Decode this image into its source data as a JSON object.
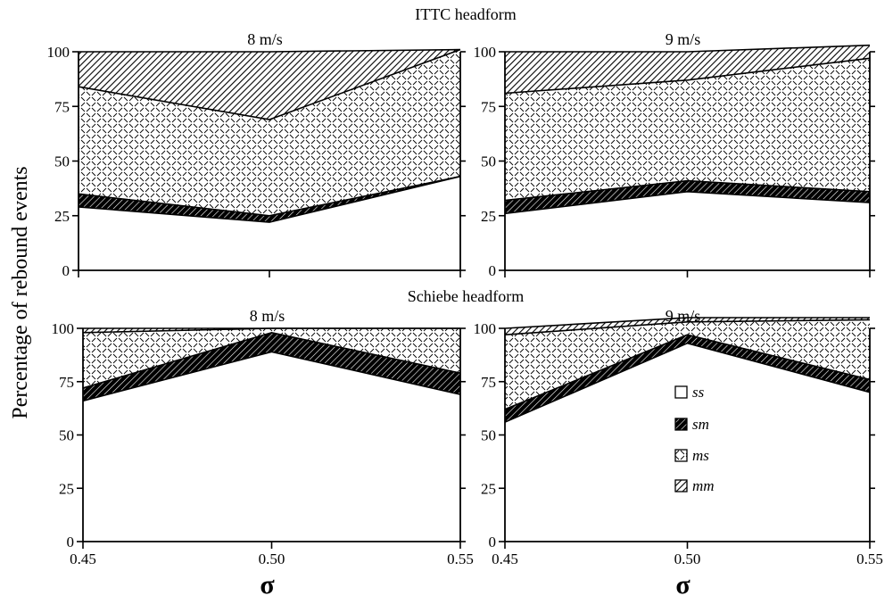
{
  "figure": {
    "ylabel": "Percentage of rebound events",
    "legend": [
      {
        "key": "ss",
        "pattern": "white"
      },
      {
        "key": "sm",
        "pattern": "dense-diagonal"
      },
      {
        "key": "ms",
        "pattern": "dashed-crosshatch"
      },
      {
        "key": "mm",
        "pattern": "diagonal-hatch"
      }
    ],
    "sections": [
      {
        "title": "ITTC headform"
      },
      {
        "title": "Schiebe headform"
      }
    ]
  },
  "chart_data": [
    {
      "type": "area",
      "stacked": true,
      "section": "ITTC headform",
      "title": "8 m/s",
      "xlabel": "",
      "x": [
        0.45,
        0.5,
        0.55
      ],
      "x_ticks": [
        "0.45",
        "0.50",
        "0.55"
      ],
      "ylim": [
        0,
        100
      ],
      "y_ticks": [
        "0",
        "25",
        "50",
        "75",
        "100"
      ],
      "series": [
        {
          "name": "ss",
          "values": [
            29,
            22,
            43
          ]
        },
        {
          "name": "sm",
          "values": [
            6,
            3,
            0
          ]
        },
        {
          "name": "ms",
          "values": [
            49,
            44,
            58
          ]
        },
        {
          "name": "mm",
          "values": [
            16,
            31,
            0
          ]
        }
      ]
    },
    {
      "type": "area",
      "stacked": true,
      "section": "ITTC headform",
      "title": "9 m/s",
      "xlabel": "",
      "x": [
        0.45,
        0.5,
        0.55
      ],
      "x_ticks": [
        "0.45",
        "0.50",
        "0.55"
      ],
      "ylim": [
        0,
        100
      ],
      "y_ticks": [
        "0",
        "25",
        "50",
        "75",
        "100"
      ],
      "series": [
        {
          "name": "ss",
          "values": [
            26,
            36,
            31
          ]
        },
        {
          "name": "sm",
          "values": [
            6,
            5,
            5
          ]
        },
        {
          "name": "ms",
          "values": [
            49,
            46,
            61
          ]
        },
        {
          "name": "mm",
          "values": [
            19,
            13,
            6
          ]
        }
      ]
    },
    {
      "type": "area",
      "stacked": true,
      "section": "Schiebe headform",
      "title": "8 m/s",
      "xlabel": "σ",
      "x": [
        0.45,
        0.5,
        0.55
      ],
      "x_ticks": [
        "0.45",
        "0.50",
        "0.55"
      ],
      "ylim": [
        0,
        100
      ],
      "y_ticks": [
        "0",
        "25",
        "50",
        "75",
        "100"
      ],
      "series": [
        {
          "name": "ss",
          "values": [
            66,
            89,
            69
          ]
        },
        {
          "name": "sm",
          "values": [
            6,
            9,
            10
          ]
        },
        {
          "name": "ms",
          "values": [
            26,
            2,
            21
          ]
        },
        {
          "name": "mm",
          "values": [
            2,
            0,
            0
          ]
        }
      ]
    },
    {
      "type": "area",
      "stacked": true,
      "section": "Schiebe headform",
      "title": "9 m/s",
      "xlabel": "σ",
      "x": [
        0.45,
        0.5,
        0.55
      ],
      "x_ticks": [
        "0.45",
        "0.50",
        "0.55"
      ],
      "ylim": [
        0,
        100
      ],
      "y_ticks": [
        "0",
        "25",
        "50",
        "75",
        "100"
      ],
      "series": [
        {
          "name": "ss",
          "values": [
            56,
            93,
            70
          ]
        },
        {
          "name": "sm",
          "values": [
            6,
            4,
            6
          ]
        },
        {
          "name": "ms",
          "values": [
            35,
            6,
            28
          ]
        },
        {
          "name": "mm",
          "values": [
            3,
            2,
            1
          ]
        }
      ]
    }
  ]
}
